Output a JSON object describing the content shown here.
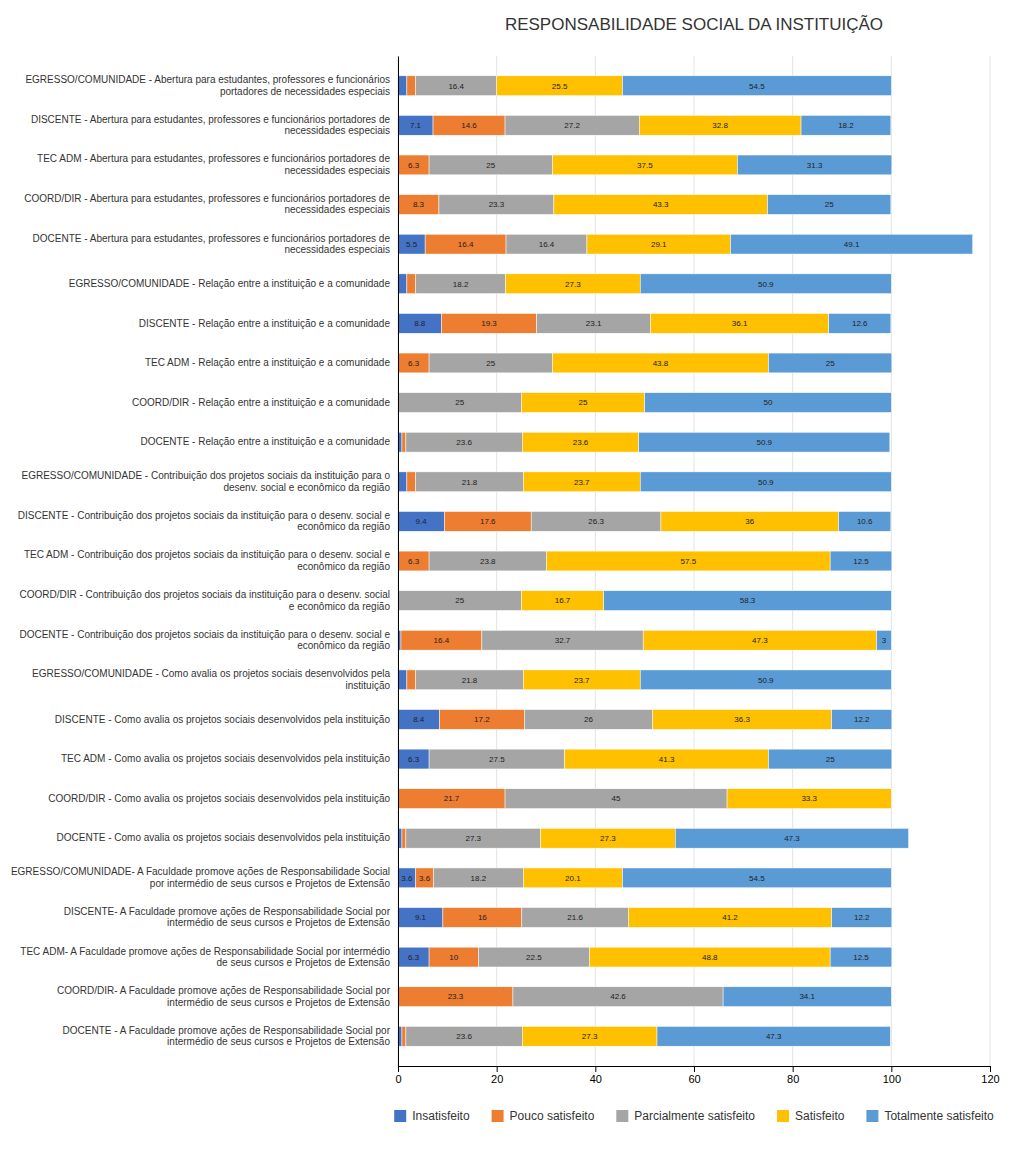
{
  "chart_data": {
    "type": "bar",
    "orientation": "horizontal",
    "stacked": true,
    "title": "RESPONSABILIDADE SOCIAL DA INSTITUIÇÃO",
    "categories": [
      "EGRESSO/COMUNIDADE - Abertura para estudantes, professores e funcionários\nportadores de necessidades especiais",
      "DISCENTE - Abertura para estudantes, professores e funcionários portadores de\nnecessidades especiais",
      "TEC ADM - Abertura para estudantes, professores e funcionários portadores de\nnecessidades especiais",
      "COORD/DIR - Abertura para estudantes, professores e funcionários portadores de\nnecessidades especiais",
      "DOCENTE - Abertura para estudantes, professores e funcionários portadores de\nnecessidades especiais",
      "EGRESSO/COMUNIDADE - Relação entre a instituição e a comunidade",
      "DISCENTE - Relação entre a instituição e a comunidade",
      "TEC ADM - Relação entre a instituição e a comunidade",
      "COORD/DIR - Relação entre a instituição e a comunidade",
      "DOCENTE - Relação entre a instituição e a comunidade",
      "EGRESSO/COMUNIDADE - Contribuição dos projetos sociais da instituição para o\ndesenv. social e econômico da região",
      "DISCENTE - Contribuição dos projetos sociais da instituição para o desenv. social e\neconômico da região",
      "TEC ADM - Contribuição dos projetos sociais da instituição para o desenv. social e\neconômico da região",
      "COORD/DIR - Contribuição dos projetos sociais da instituição para o desenv. social\ne econômico da região",
      "DOCENTE - Contribuição dos projetos sociais da instituição para o desenv. social e\neconômico da região",
      "EGRESSO/COMUNIDADE - Como avalia os projetos sociais desenvolvidos pela\ninstituição",
      "DISCENTE - Como avalia os projetos sociais desenvolvidos pela instituição",
      "TEC ADM - Como avalia os projetos sociais desenvolvidos pela instituição",
      "COORD/DIR - Como avalia os projetos sociais desenvolvidos pela instituição",
      "DOCENTE - Como avalia os projetos sociais desenvolvidos pela instituição",
      "EGRESSO/COMUNIDADE- A Faculdade promove ações de Responsabilidade Social\npor intermédio de seus cursos e Projetos de Extensão",
      "DISCENTE- A Faculdade promove ações de Responsabilidade Social por\nintermédio de seus cursos e Projetos de Extensão",
      "TEC ADM- A Faculdade promove ações de Responsabilidade Social por intermédio\nde seus cursos e Projetos de Extensão",
      "COORD/DIR- A Faculdade promove ações de Responsabilidade Social por\nintermédio de seus cursos e Projetos de Extensão",
      "DOCENTE - A Faculdade promove ações de Responsabilidade Social por\nintermédio de seus cursos e Projetos de Extensão"
    ],
    "series": [
      {
        "name": "Insatisfeito",
        "color": "#4472C4",
        "values": [
          1.8,
          7.1,
          0.0,
          0.0,
          5.5,
          1.8,
          8.8,
          0.0,
          0.0,
          0.8,
          1.8,
          9.4,
          0.0,
          0.0,
          0.6,
          1.8,
          8.4,
          6.3,
          0.0,
          0.8,
          3.6,
          9.1,
          6.3,
          0.0,
          0.8
        ]
      },
      {
        "name": "Pouco satisfeito",
        "color": "#ED7D31",
        "values": [
          1.8,
          14.6,
          6.3,
          8.3,
          16.4,
          1.8,
          19.3,
          6.3,
          0.0,
          0.8,
          1.8,
          17.6,
          6.3,
          0.0,
          16.4,
          1.8,
          17.2,
          0.0,
          21.7,
          0.8,
          3.6,
          16.0,
          10.0,
          23.3,
          0.8
        ]
      },
      {
        "name": "Parcialmente satisfeito",
        "color": "#A5A5A5",
        "values": [
          16.4,
          27.2,
          25.0,
          23.3,
          16.4,
          18.2,
          23.1,
          25.0,
          25.0,
          23.6,
          21.8,
          26.3,
          23.8,
          25.0,
          32.7,
          21.8,
          26.0,
          27.5,
          45.0,
          27.3,
          18.2,
          21.6,
          22.5,
          42.6,
          23.6
        ]
      },
      {
        "name": "Satisfeito",
        "color": "#FFC000",
        "values": [
          25.5,
          32.8,
          37.5,
          43.3,
          29.1,
          27.3,
          36.1,
          43.8,
          25.0,
          23.6,
          23.7,
          36.0,
          57.5,
          16.7,
          47.3,
          23.7,
          36.3,
          41.3,
          33.3,
          27.3,
          20.1,
          41.2,
          48.8,
          0.0,
          27.3
        ]
      },
      {
        "name": "Totalmente satisfeito",
        "color": "#5B9BD5",
        "values": [
          54.5,
          18.2,
          31.3,
          25.0,
          49.1,
          50.9,
          12.6,
          25.0,
          50.0,
          50.9,
          50.9,
          10.6,
          12.5,
          58.3,
          3.0,
          50.9,
          12.2,
          25.0,
          0.0,
          47.3,
          54.5,
          12.2,
          12.5,
          34.1,
          47.3
        ]
      }
    ],
    "xlim": [
      0,
      120
    ],
    "xticks": [
      0,
      20,
      40,
      60,
      80,
      100,
      120
    ],
    "grid": true,
    "legend": "bottom",
    "data_labels": true
  }
}
